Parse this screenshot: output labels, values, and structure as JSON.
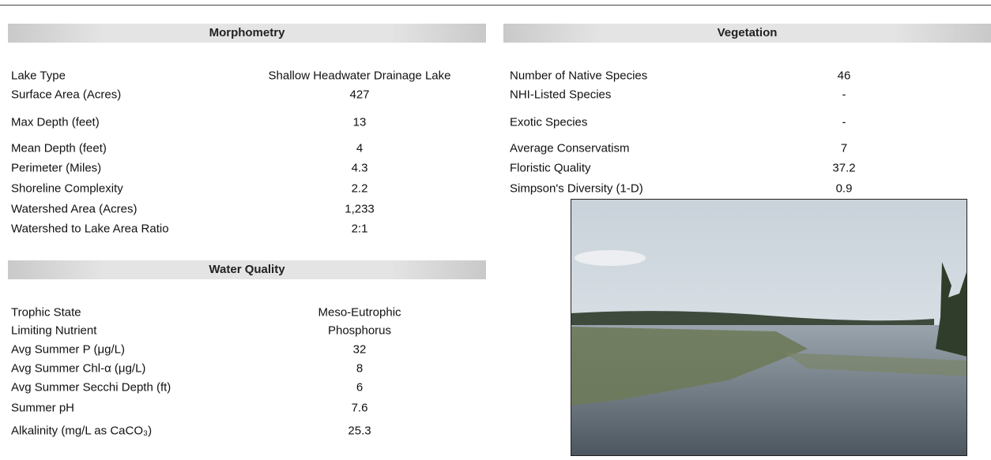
{
  "morphometry": {
    "title": "Morphometry",
    "rows": [
      [
        "Lake Type",
        "Shallow Headwater Drainage Lake"
      ],
      [
        "Surface Area (Acres)",
        "427"
      ],
      [
        "Max Depth (feet)",
        "13"
      ],
      [
        "Mean Depth (feet)",
        "4"
      ],
      [
        "Perimeter (Miles)",
        "4.3"
      ],
      [
        "Shoreline Complexity",
        "2.2"
      ],
      [
        "Watershed Area (Acres)",
        "1,233"
      ],
      [
        "Watershed to Lake Area Ratio",
        "2:1"
      ]
    ]
  },
  "water_quality": {
    "title": "Water Quality",
    "rows": [
      [
        "Trophic State",
        "Meso-Eutrophic"
      ],
      [
        "Limiting Nutrient",
        "Phosphorus"
      ],
      [
        "Avg Summer P (μg/L)",
        "32"
      ],
      [
        "Avg Summer Chl-α (μg/L)",
        "8"
      ],
      [
        "Avg Summer Secchi Depth (ft)",
        "6"
      ],
      [
        "Summer pH",
        "7.6"
      ],
      [
        "Alkalinity (mg/L as CaCO₃)",
        "25.3"
      ]
    ]
  },
  "vegetation": {
    "title": "Vegetation",
    "rows": [
      [
        "Number of Native Species",
        "46"
      ],
      [
        "NHI-Listed Species",
        "-"
      ],
      [
        "Exotic Species",
        "-"
      ],
      [
        "Average Conservatism",
        "7"
      ],
      [
        "Floristic Quality",
        "37.2"
      ],
      [
        "Simpson's Diversity (1-D)",
        "0.9"
      ]
    ]
  }
}
